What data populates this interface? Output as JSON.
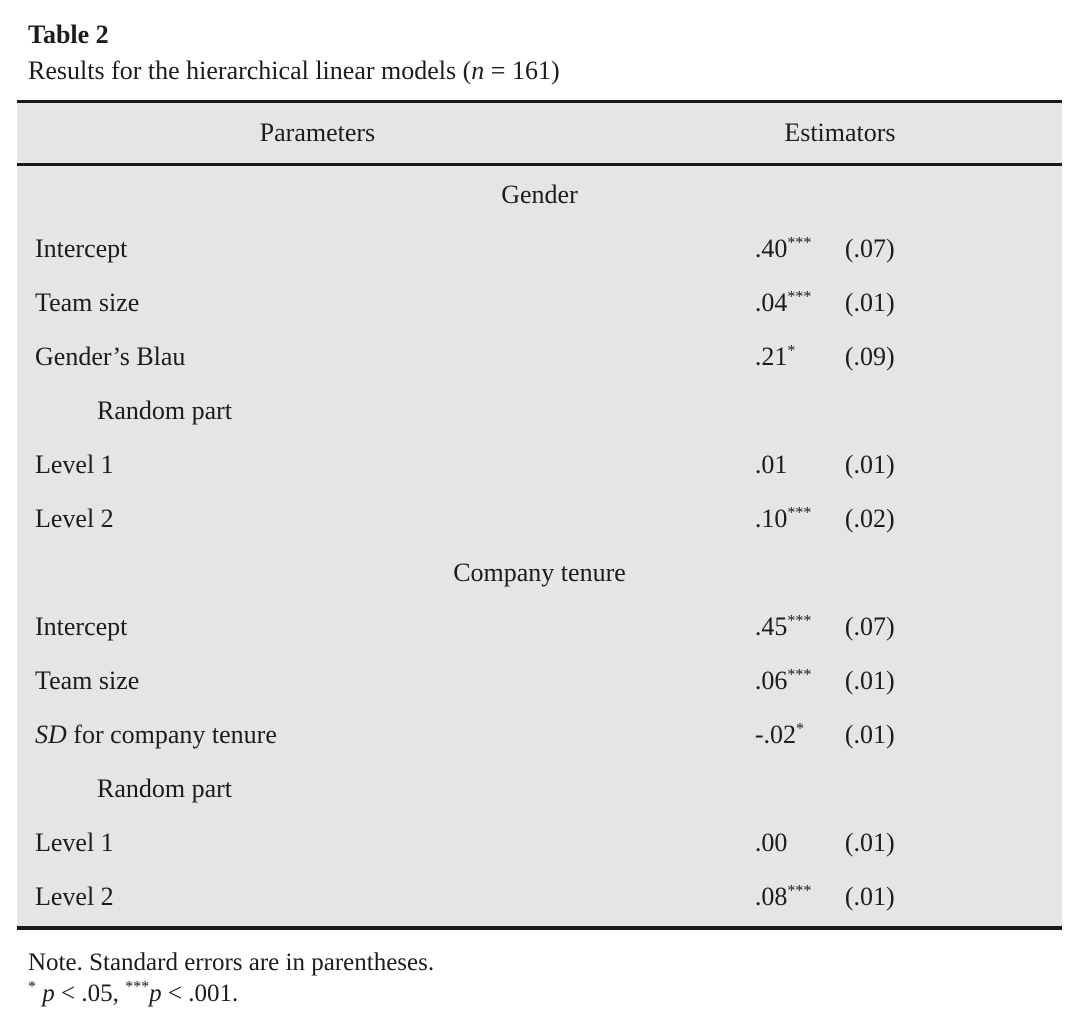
{
  "colors": {
    "page_background": "#ffffff",
    "table_background": "#e6e5e6",
    "rule": "#1a1a1a",
    "text": "#1c1c1c"
  },
  "title": "Table 2",
  "caption_parts": [
    {
      "t": "r",
      "v": "Results for the hierarchical linear models ("
    },
    {
      "t": "i",
      "v": "n"
    },
    {
      "t": "r",
      "v": " = 161)"
    }
  ],
  "table": {
    "col_headers": {
      "parameters": "Parameters",
      "estimators": "Estimators"
    },
    "rows": [
      {
        "type": "section",
        "text": "Gender"
      },
      {
        "type": "param",
        "label": [
          {
            "t": "r",
            "v": "Intercept"
          }
        ],
        "est": ".40",
        "stars": "***",
        "se": "(.07)"
      },
      {
        "type": "param",
        "label": [
          {
            "t": "r",
            "v": "Team size"
          }
        ],
        "est": ".04",
        "stars": "***",
        "se": "(.01)"
      },
      {
        "type": "param",
        "label": [
          {
            "t": "r",
            "v": "Gender’s Blau"
          }
        ],
        "est": ".21",
        "stars": "*",
        "se": "(.09)"
      },
      {
        "type": "subheader",
        "label": [
          {
            "t": "r",
            "v": "Random part"
          }
        ]
      },
      {
        "type": "param",
        "label": [
          {
            "t": "r",
            "v": "Level 1"
          }
        ],
        "est": ".01",
        "stars": "",
        "se": "(.01)"
      },
      {
        "type": "param",
        "label": [
          {
            "t": "r",
            "v": "Level 2"
          }
        ],
        "est": ".10",
        "stars": "***",
        "se": "(.02)"
      },
      {
        "type": "section",
        "text": "Company tenure"
      },
      {
        "type": "param",
        "label": [
          {
            "t": "r",
            "v": "Intercept"
          }
        ],
        "est": ".45",
        "stars": "***",
        "se": "(.07)"
      },
      {
        "type": "param",
        "label": [
          {
            "t": "r",
            "v": "Team size"
          }
        ],
        "est": ".06",
        "stars": "***",
        "se": "(.01)"
      },
      {
        "type": "param",
        "label": [
          {
            "t": "i",
            "v": "SD"
          },
          {
            "t": "r",
            "v": " for company tenure"
          }
        ],
        "est": "-.02",
        "stars": "*",
        "se": "(.01)"
      },
      {
        "type": "subheader",
        "label": [
          {
            "t": "r",
            "v": "Random part"
          }
        ]
      },
      {
        "type": "param",
        "label": [
          {
            "t": "r",
            "v": "Level 1"
          }
        ],
        "est": ".00",
        "stars": "",
        "se": "(.01)"
      },
      {
        "type": "param",
        "label": [
          {
            "t": "r",
            "v": "Level 2"
          }
        ],
        "est": ".08",
        "stars": "***",
        "se": "(.01)"
      }
    ]
  },
  "notes": {
    "line1": "Note. Standard errors are in parentheses.",
    "line2_parts": [
      {
        "t": "sup",
        "v": "*"
      },
      {
        "t": "r",
        "v": " "
      },
      {
        "t": "i",
        "v": "p"
      },
      {
        "t": "r",
        "v": " < .05, "
      },
      {
        "t": "sup",
        "v": "***"
      },
      {
        "t": "i",
        "v": "p"
      },
      {
        "t": "r",
        "v": " < .001."
      }
    ]
  }
}
